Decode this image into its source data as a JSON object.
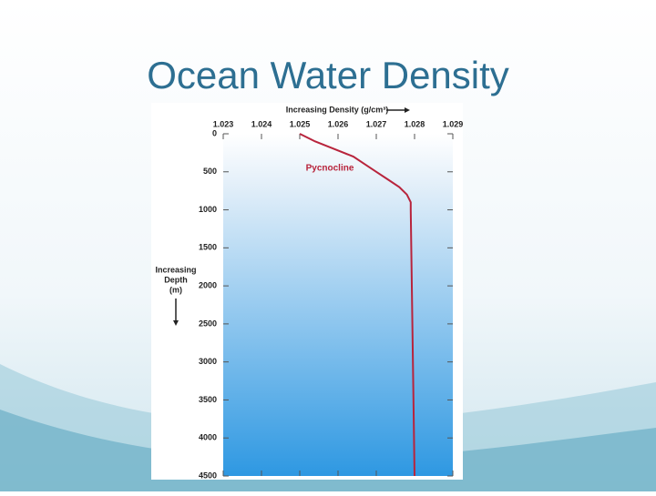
{
  "slide_title": "Ocean Water Density",
  "chart_data": {
    "type": "line",
    "x_label": "Increasing Density (g/cm³)",
    "y_label": [
      "Increasing",
      "Depth",
      "(m)"
    ],
    "annotation": "Pycnocline",
    "color": "#b8243c",
    "x": [
      1.025,
      1.0254,
      1.0259,
      1.0264,
      1.0267,
      1.027,
      1.0273,
      1.0276,
      1.0278,
      1.0279,
      1.0279,
      1.028
    ],
    "values": [
      0,
      100,
      200,
      300,
      400,
      500,
      600,
      700,
      800,
      900,
      1000,
      4500
    ],
    "xlim": [
      1.023,
      1.029
    ],
    "xticks": [
      1.023,
      1.024,
      1.025,
      1.026,
      1.027,
      1.028,
      1.029
    ],
    "ylim": [
      0,
      4500
    ],
    "yticks": [
      0,
      500,
      1000,
      1500,
      2000,
      2500,
      3000,
      3500,
      4000,
      4500
    ],
    "y_inverted": true
  }
}
